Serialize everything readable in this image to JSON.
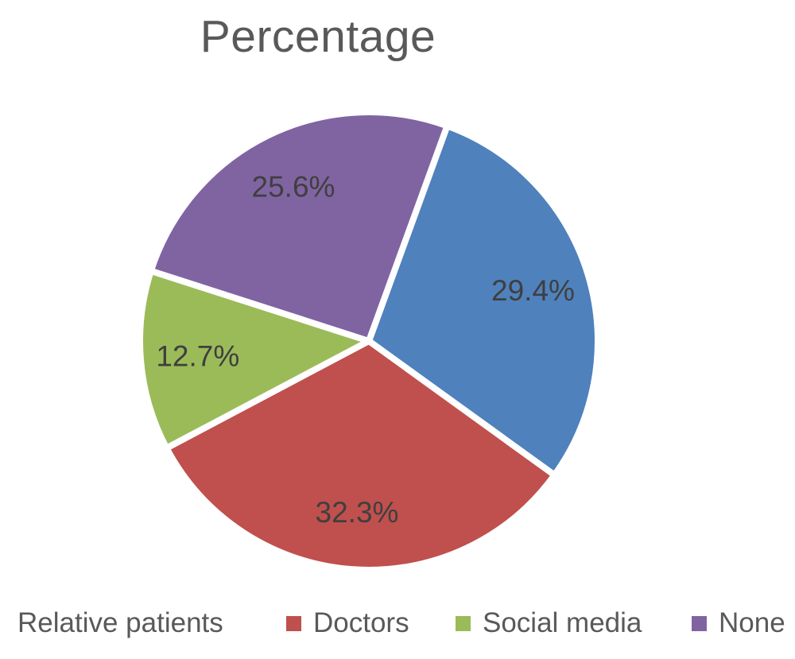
{
  "page": {
    "background_color": "#FFFFFF"
  },
  "chart_data": {
    "type": "pie",
    "title": "Percentage",
    "slices": [
      {
        "label": "Relative patients",
        "value": 29.4,
        "display": "29.4%",
        "color": "#4F81BD",
        "legend_marker_visible": false
      },
      {
        "label": "Doctors",
        "value": 32.3,
        "display": "32.3%",
        "color": "#C0504D",
        "legend_marker_visible": true
      },
      {
        "label": "Social media",
        "value": 12.7,
        "display": "12.7%",
        "color": "#9BBB59",
        "legend_marker_visible": true
      },
      {
        "label": "None",
        "value": 25.6,
        "display": "25.6%",
        "color": "#8064A2",
        "legend_marker_visible": true
      }
    ],
    "start_angle_deg": 20,
    "legend_position": "bottom",
    "slice_border_color": "#FFFFFF",
    "value_label_color": "#3F3F3F",
    "title_color": "#595959",
    "legend_text_color": "#595959",
    "grid": false
  }
}
